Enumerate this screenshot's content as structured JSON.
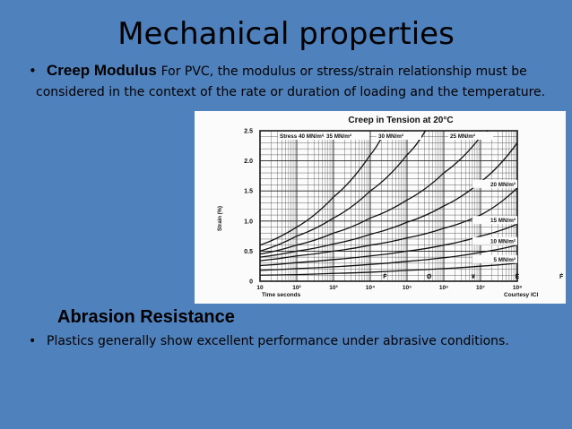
{
  "slide": {
    "title": "Mechanical properties",
    "bullet1_symbol": "•",
    "bullet1_heading": "Creep Modulus",
    "bullet1_text": "For PVC, the modulus or stress/strain relationship must be considered in the context of the rate or duration of loading and the temperature.",
    "subheading": "Abrasion Resistance",
    "bullet2_symbol": "•",
    "bullet2_text": "Plastics generally show excellent performance under abrasive conditions."
  },
  "chart_data": {
    "type": "line",
    "title": "Creep in Tension at 20°C",
    "ylabel": "Strain (%)",
    "xlabel": "Time seconds",
    "credit": "Courtesy ICI",
    "yticks": [
      "0",
      "0.5",
      "1.0",
      "1.5",
      "2.0",
      "2.5"
    ],
    "xticks": [
      "10",
      "10²",
      "10³",
      "10⁴",
      "10⁵",
      "10⁶",
      "10⁷",
      "10⁸"
    ],
    "ylim": [
      0,
      2.5
    ],
    "time_markers": [
      "Ḟ",
      "Ø",
      "¥",
      "Ȇ",
      "Ḟ"
    ],
    "series": [
      {
        "name": "Stress 40 MN/m²",
        "x": [
          0,
          1,
          2,
          3,
          3.4
        ],
        "y": [
          0.6,
          0.9,
          1.4,
          2.1,
          2.5
        ]
      },
      {
        "name": "35 MN/m²",
        "x": [
          0,
          1,
          2,
          3,
          4,
          4.5
        ],
        "y": [
          0.5,
          0.75,
          1.05,
          1.5,
          2.1,
          2.5
        ]
      },
      {
        "name": "30 MN/m²",
        "x": [
          0,
          1,
          2,
          3,
          4,
          5,
          6,
          6.2
        ],
        "y": [
          0.45,
          0.6,
          0.8,
          1.05,
          1.35,
          1.8,
          2.4,
          2.5
        ]
      },
      {
        "name": "25 MN/m²",
        "x": [
          0,
          1,
          2,
          3,
          4,
          5,
          6,
          7
        ],
        "y": [
          0.4,
          0.5,
          0.62,
          0.78,
          0.98,
          1.25,
          1.65,
          2.3
        ]
      },
      {
        "name": "20 MN/m²",
        "x": [
          0,
          1,
          2,
          3,
          4,
          5,
          6,
          7
        ],
        "y": [
          0.34,
          0.42,
          0.5,
          0.6,
          0.72,
          0.88,
          1.1,
          1.55
        ]
      },
      {
        "name": "15 MN/m²",
        "x": [
          0,
          1,
          2,
          3,
          4,
          5,
          6,
          7
        ],
        "y": [
          0.26,
          0.31,
          0.36,
          0.42,
          0.5,
          0.6,
          0.75,
          0.95
        ]
      },
      {
        "name": "10 MN/m²",
        "x": [
          0,
          1,
          2,
          3,
          4,
          5,
          6,
          7
        ],
        "y": [
          0.18,
          0.21,
          0.24,
          0.28,
          0.33,
          0.39,
          0.48,
          0.6
        ]
      },
      {
        "name": "5 MN/m²",
        "x": [
          0,
          1,
          2,
          3,
          4,
          5,
          6,
          7
        ],
        "y": [
          0.1,
          0.11,
          0.13,
          0.15,
          0.18,
          0.21,
          0.25,
          0.3
        ]
      }
    ]
  }
}
